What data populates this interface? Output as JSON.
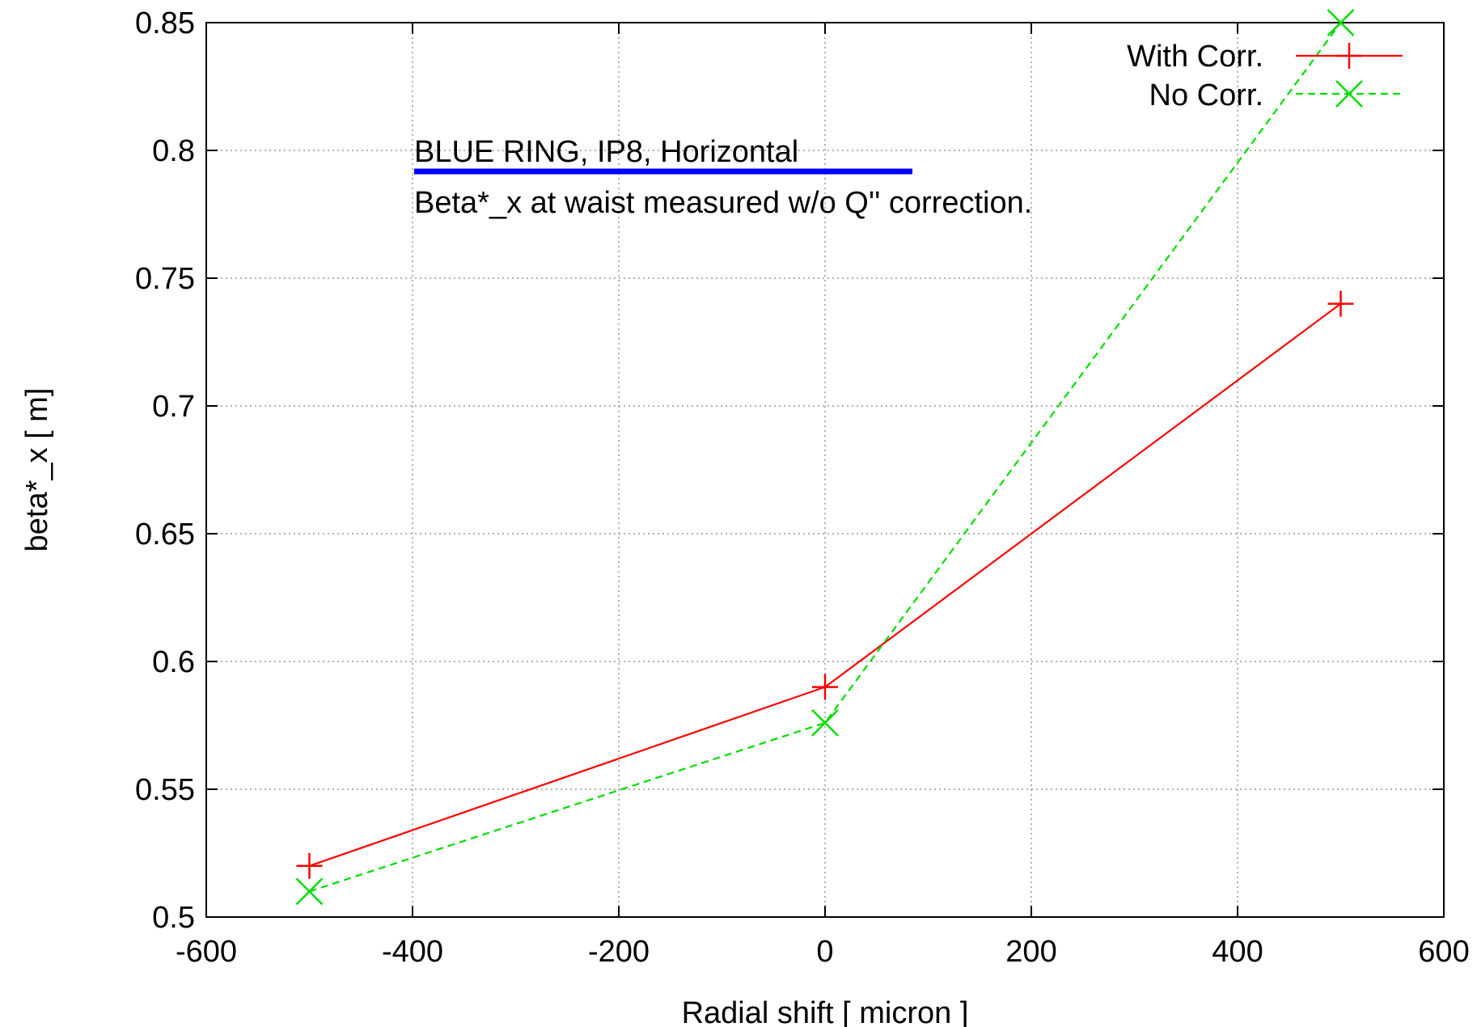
{
  "chart_data": {
    "type": "line",
    "xlabel": "Radial shift [ micron ]",
    "ylabel": "beta*_x  [ m]",
    "xlim": [
      -600,
      600
    ],
    "ylim": [
      0.5,
      0.85
    ],
    "xticks": [
      -600,
      -400,
      -200,
      0,
      200,
      400,
      600
    ],
    "yticks": [
      0.5,
      0.55,
      0.6,
      0.65,
      0.7,
      0.75,
      0.8,
      0.85
    ],
    "grid": true,
    "legend_position": "top-right",
    "annotations": [
      "BLUE RING, IP8, Horizontal",
      "Beta*_x at waist measured w/o Q'' correction."
    ],
    "series": [
      {
        "name": "With Corr.",
        "color": "#ff0000",
        "marker": "plus",
        "line": "solid",
        "x": [
          -500,
          0,
          500
        ],
        "y": [
          0.52,
          0.59,
          0.74
        ]
      },
      {
        "name": "No Corr.",
        "color": "#00dd00",
        "marker": "cross",
        "line": "dashed",
        "x": [
          -500,
          0,
          500
        ],
        "y": [
          0.51,
          0.576,
          0.85
        ]
      }
    ],
    "underline_color": "#0000ff"
  }
}
